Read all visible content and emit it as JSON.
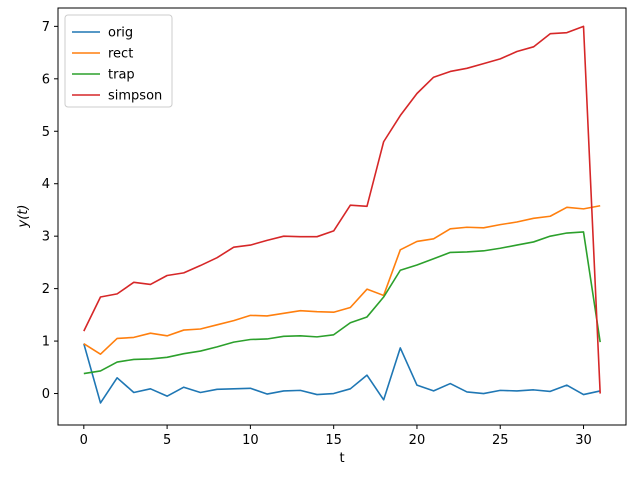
{
  "chart_data": {
    "type": "line",
    "xlabel": "t",
    "ylabel": "y(t)",
    "xlim": [
      -1.55,
      32.55
    ],
    "ylim": [
      -0.6,
      7.35
    ],
    "x_ticks": [
      0,
      5,
      10,
      15,
      20,
      25,
      30
    ],
    "y_ticks": [
      0,
      1,
      2,
      3,
      4,
      5,
      6,
      7
    ],
    "grid": false,
    "legend_position": "top-left",
    "x": [
      0,
      1,
      2,
      3,
      4,
      5,
      6,
      7,
      8,
      9,
      10,
      11,
      12,
      13,
      14,
      15,
      16,
      17,
      18,
      19,
      20,
      21,
      22,
      23,
      24,
      25,
      26,
      27,
      28,
      29,
      30,
      31
    ],
    "series": [
      {
        "name": "orig",
        "color": "#1f77b4",
        "values": [
          0.95,
          -0.18,
          0.3,
          0.02,
          0.09,
          -0.05,
          0.12,
          0.02,
          0.08,
          0.09,
          0.1,
          -0.01,
          0.05,
          0.06,
          -0.02,
          0.0,
          0.09,
          0.35,
          -0.12,
          0.87,
          0.16,
          0.05,
          0.19,
          0.03,
          0.0,
          0.06,
          0.05,
          0.07,
          0.04,
          0.16,
          -0.02,
          0.05
        ]
      },
      {
        "name": "rect",
        "color": "#ff7f0e",
        "values": [
          0.95,
          0.75,
          1.05,
          1.07,
          1.15,
          1.1,
          1.21,
          1.23,
          1.31,
          1.39,
          1.49,
          1.48,
          1.53,
          1.58,
          1.56,
          1.55,
          1.64,
          1.99,
          1.87,
          2.74,
          2.9,
          2.95,
          3.14,
          3.17,
          3.16,
          3.22,
          3.27,
          3.34,
          3.38,
          3.55,
          3.52,
          3.58
        ]
      },
      {
        "name": "trap",
        "color": "#2ca02c",
        "values": [
          0.38,
          0.43,
          0.6,
          0.65,
          0.66,
          0.69,
          0.76,
          0.81,
          0.89,
          0.98,
          1.03,
          1.04,
          1.09,
          1.1,
          1.08,
          1.12,
          1.35,
          1.46,
          1.84,
          2.35,
          2.45,
          2.57,
          2.69,
          2.7,
          2.72,
          2.77,
          2.83,
          2.89,
          3.0,
          3.06,
          3.08,
          0.98
        ]
      },
      {
        "name": "simpson",
        "color": "#d62728",
        "values": [
          1.19,
          1.84,
          1.9,
          2.12,
          2.08,
          2.25,
          2.3,
          2.44,
          2.59,
          2.79,
          2.83,
          2.92,
          3.0,
          2.99,
          2.99,
          3.1,
          3.59,
          3.57,
          4.8,
          5.3,
          5.72,
          6.03,
          6.14,
          6.2,
          6.29,
          6.38,
          6.52,
          6.61,
          6.86,
          6.88,
          7.0,
          0.0
        ]
      }
    ]
  }
}
